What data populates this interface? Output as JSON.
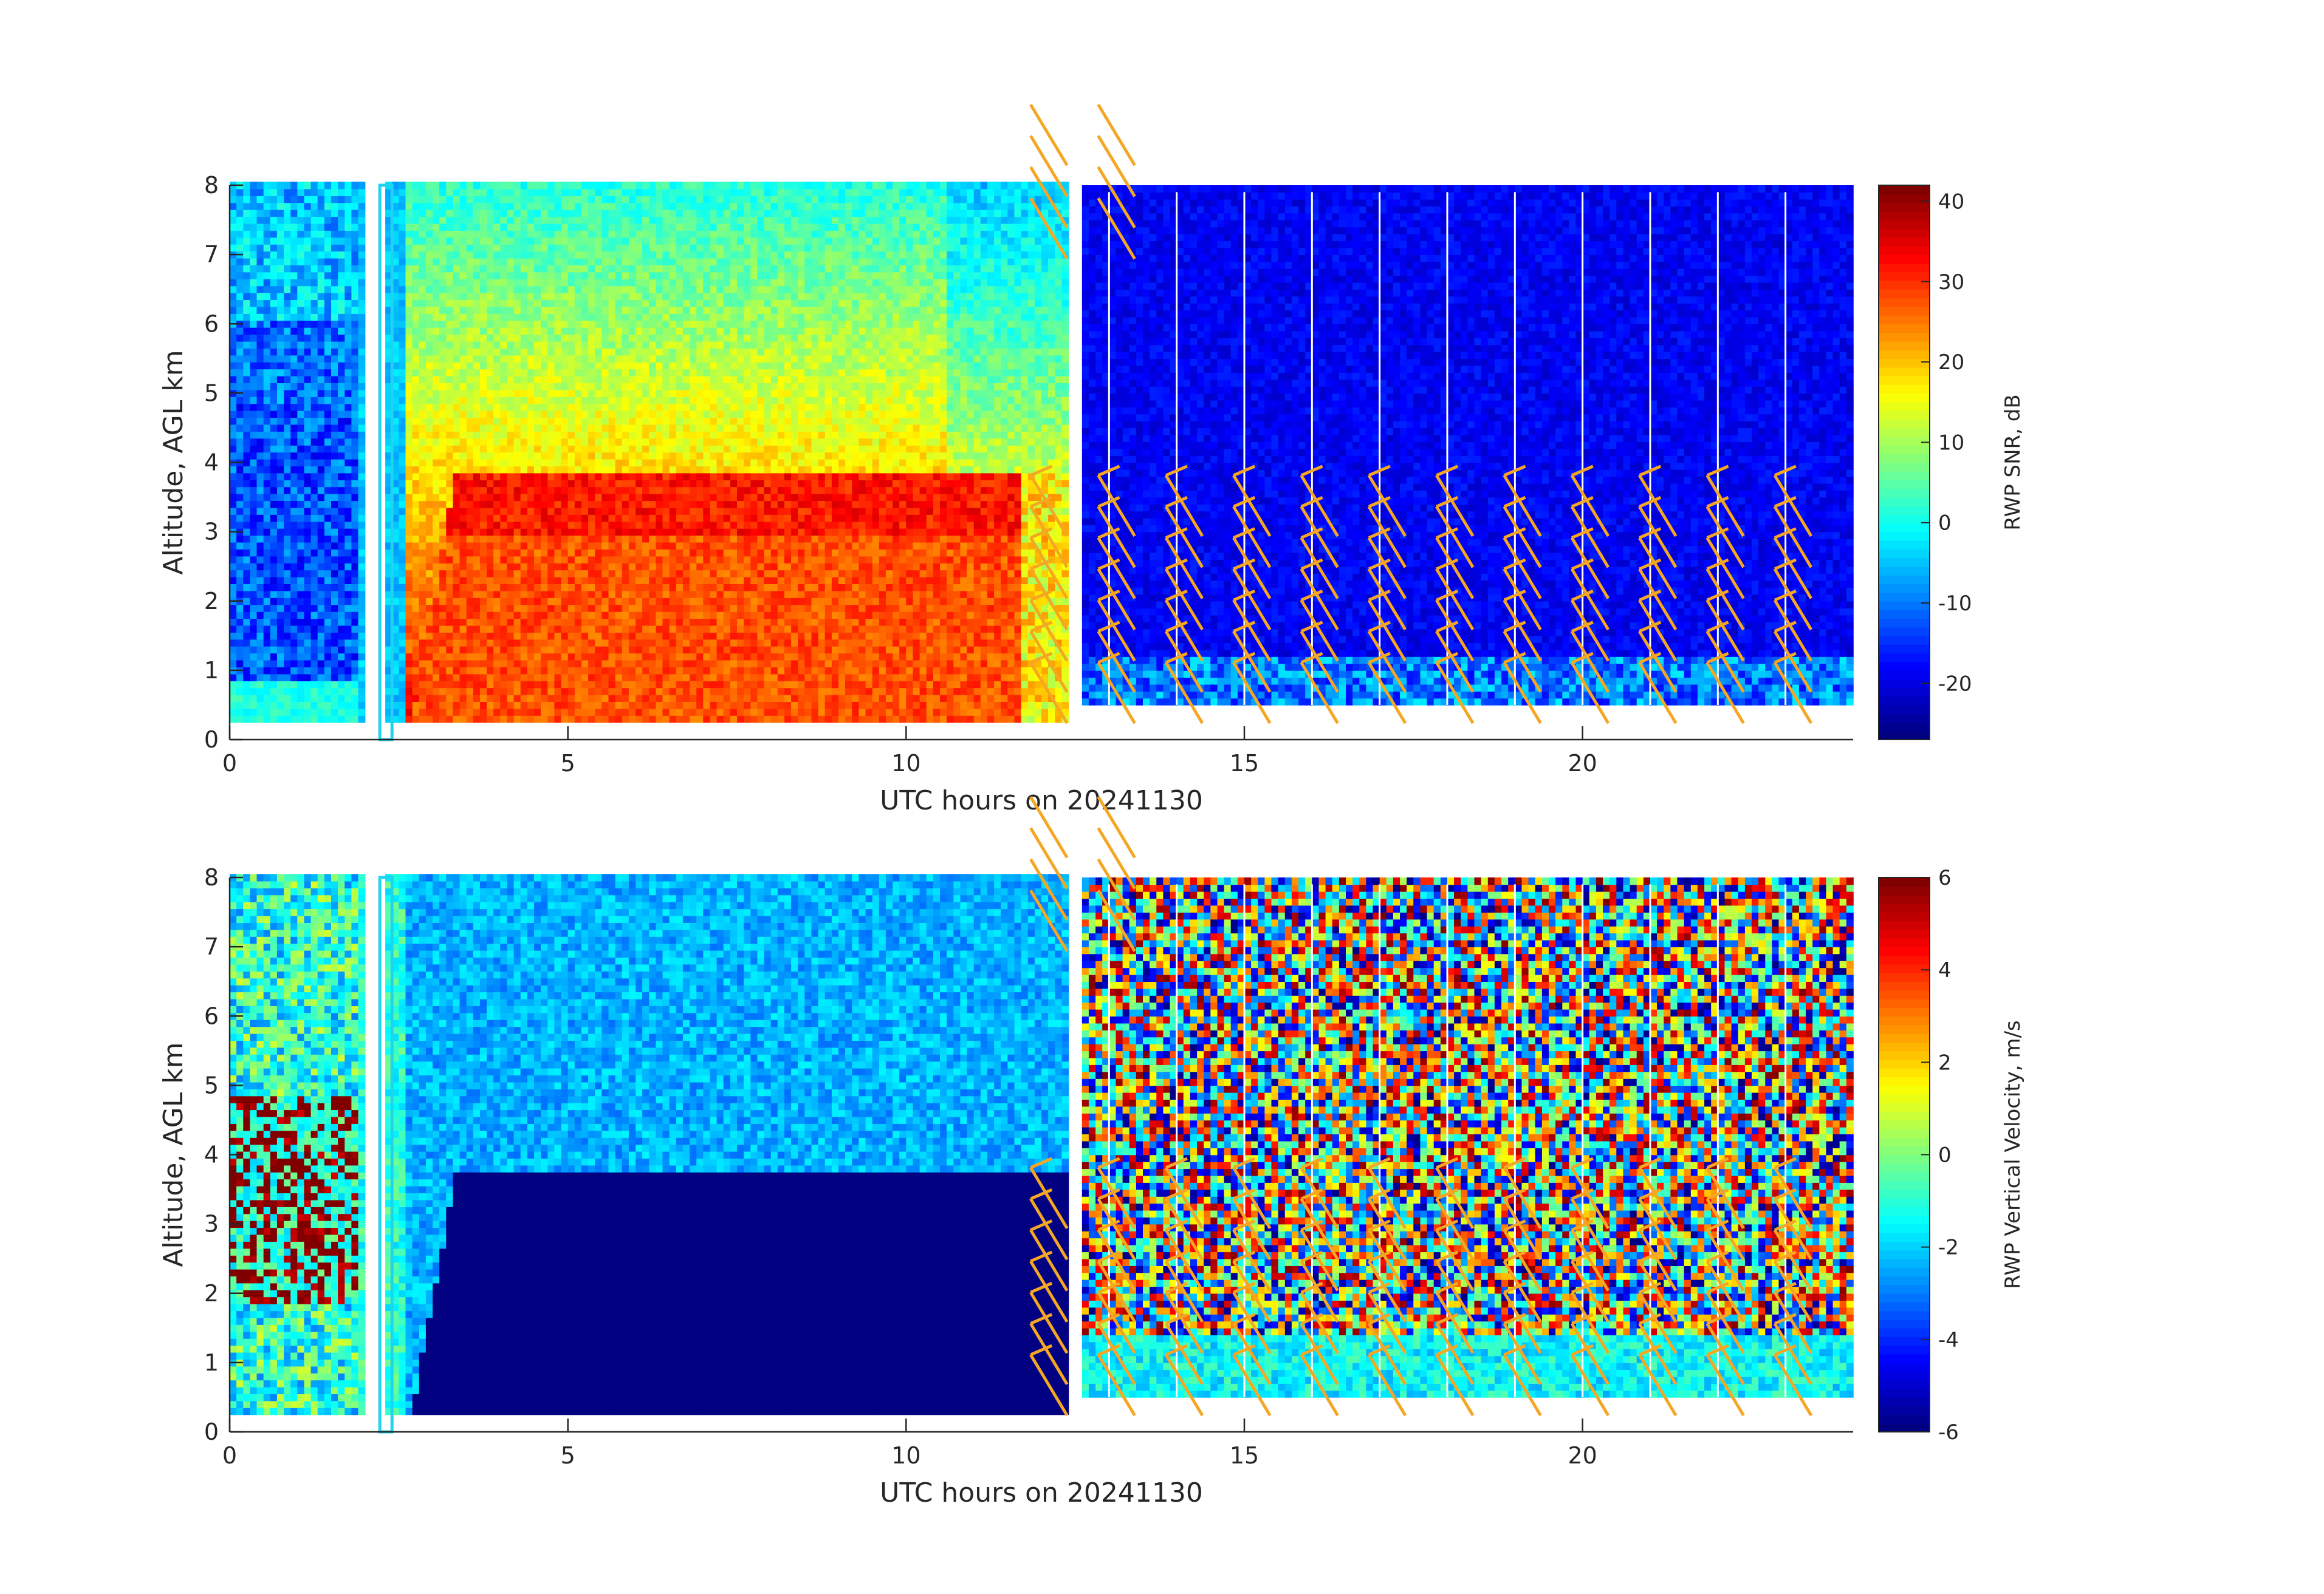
{
  "chart_data": [
    {
      "type": "heatmap",
      "xlabel": "UTC hours on 20241130",
      "ylabel": "Altitude, AGL km",
      "xlim": [
        0,
        24
      ],
      "ylim": [
        0,
        8
      ],
      "xticks": [
        0,
        5,
        10,
        15,
        20
      ],
      "yticks": [
        0,
        1,
        2,
        3,
        4,
        5,
        6,
        7,
        8
      ],
      "colorbar": {
        "label": "RWP SNR, dB",
        "range": [
          -27,
          42
        ],
        "ticks": [
          -20,
          -10,
          0,
          10,
          20,
          30,
          40
        ]
      },
      "colormap": "jet",
      "overlay": {
        "type": "wind-barbs",
        "color": "#f5a623"
      },
      "description_regions": [
        {
          "x": [
            0,
            2
          ],
          "y": [
            0.25,
            8
          ],
          "value_range": [
            -20,
            5
          ]
        },
        {
          "x": [
            3,
            11.5
          ],
          "y": [
            0.25,
            3.8
          ],
          "value_range": [
            22,
            35
          ]
        },
        {
          "x": [
            2.5,
            12.3
          ],
          "y": [
            3.8,
            8
          ],
          "value_range": [
            -10,
            15
          ]
        },
        {
          "x": [
            12.5,
            24
          ],
          "y": [
            0.5,
            8
          ],
          "value_range": [
            -25,
            -15
          ]
        }
      ]
    },
    {
      "type": "heatmap",
      "xlabel": "UTC hours on 20241130",
      "ylabel": "Altitude, AGL km",
      "xlim": [
        0,
        24
      ],
      "ylim": [
        0,
        8
      ],
      "xticks": [
        0,
        5,
        10,
        15,
        20
      ],
      "yticks": [
        0,
        1,
        2,
        3,
        4,
        5,
        6,
        7,
        8
      ],
      "colorbar": {
        "label": "RWP Vertical Velocity, m/s",
        "range": [
          -6,
          6
        ],
        "ticks": [
          -6,
          -4,
          -2,
          0,
          2,
          4,
          6
        ]
      },
      "colormap": "jet",
      "overlay": {
        "type": "wind-barbs",
        "color": "#f5a623"
      },
      "description_regions": [
        {
          "x": [
            0,
            2
          ],
          "y": [
            0.25,
            8
          ],
          "value_range": [
            -3,
            6
          ]
        },
        {
          "x": [
            2.8,
            12.3
          ],
          "y": [
            0.25,
            3.7
          ],
          "value_range": [
            -6,
            -6
          ]
        },
        {
          "x": [
            2.5,
            12.3
          ],
          "y": [
            3.7,
            8
          ],
          "value_range": [
            -4,
            -2
          ]
        },
        {
          "x": [
            12.5,
            24
          ],
          "y": [
            0.5,
            8
          ],
          "value_range": [
            -6,
            6
          ]
        }
      ]
    }
  ]
}
